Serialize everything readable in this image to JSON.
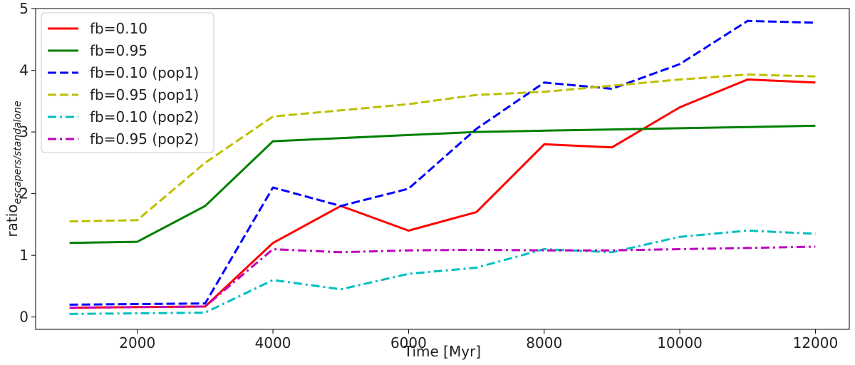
{
  "chart_data": {
    "type": "line",
    "title": "",
    "xlabel": "Time [Myr]",
    "ylabel": "ratio",
    "ylabel_subscript": "escapers/standalone",
    "xlim": [
      500,
      12500
    ],
    "ylim": [
      -0.2,
      5
    ],
    "x_ticks": [
      2000,
      4000,
      6000,
      8000,
      10000,
      12000
    ],
    "x_tick_labels": [
      "2000",
      "4000",
      "6000",
      "8000",
      "10000",
      "12000"
    ],
    "y_ticks": [
      0,
      1,
      2,
      3,
      4,
      5
    ],
    "y_tick_labels": [
      "0",
      "1",
      "2",
      "3",
      "4",
      "5"
    ],
    "grid": false,
    "legend_placement": "top-left",
    "x": [
      1000,
      2000,
      3000,
      4000,
      5000,
      6000,
      7000,
      8000,
      9000,
      10000,
      11000,
      12000
    ],
    "series": [
      {
        "name": "fb=0.10",
        "color": "#ff0000",
        "style": "solid",
        "values": [
          0.15,
          0.16,
          0.17,
          1.2,
          1.8,
          1.4,
          1.7,
          2.8,
          2.75,
          3.4,
          3.85,
          3.8
        ]
      },
      {
        "name": "fb=0.95",
        "color": "#008000",
        "style": "solid",
        "values": [
          1.2,
          1.22,
          1.8,
          2.85,
          2.9,
          2.95,
          3.0,
          3.02,
          3.04,
          3.06,
          3.08,
          3.1
        ]
      },
      {
        "name": "fb=0.10 (pop1)",
        "color": "#0000ff",
        "style": "dashed",
        "values": [
          0.2,
          0.21,
          0.22,
          2.1,
          1.8,
          2.08,
          3.05,
          3.8,
          3.7,
          4.1,
          4.8,
          4.77
        ]
      },
      {
        "name": "fb=0.95 (pop1)",
        "color": "#bfbf00",
        "style": "dashed",
        "values": [
          1.55,
          1.57,
          2.5,
          3.25,
          3.35,
          3.45,
          3.6,
          3.65,
          3.75,
          3.85,
          3.93,
          3.9
        ]
      },
      {
        "name": "fb=0.10 (pop2)",
        "color": "#00bfbf",
        "style": "dashdot",
        "values": [
          0.05,
          0.06,
          0.07,
          0.6,
          0.45,
          0.7,
          0.8,
          1.1,
          1.05,
          1.3,
          1.4,
          1.35
        ]
      },
      {
        "name": "fb=0.95 (pop2)",
        "color": "#bf00bf",
        "style": "dashdot",
        "values": [
          0.15,
          0.16,
          0.17,
          1.1,
          1.05,
          1.08,
          1.09,
          1.08,
          1.08,
          1.1,
          1.12,
          1.14
        ]
      }
    ]
  }
}
